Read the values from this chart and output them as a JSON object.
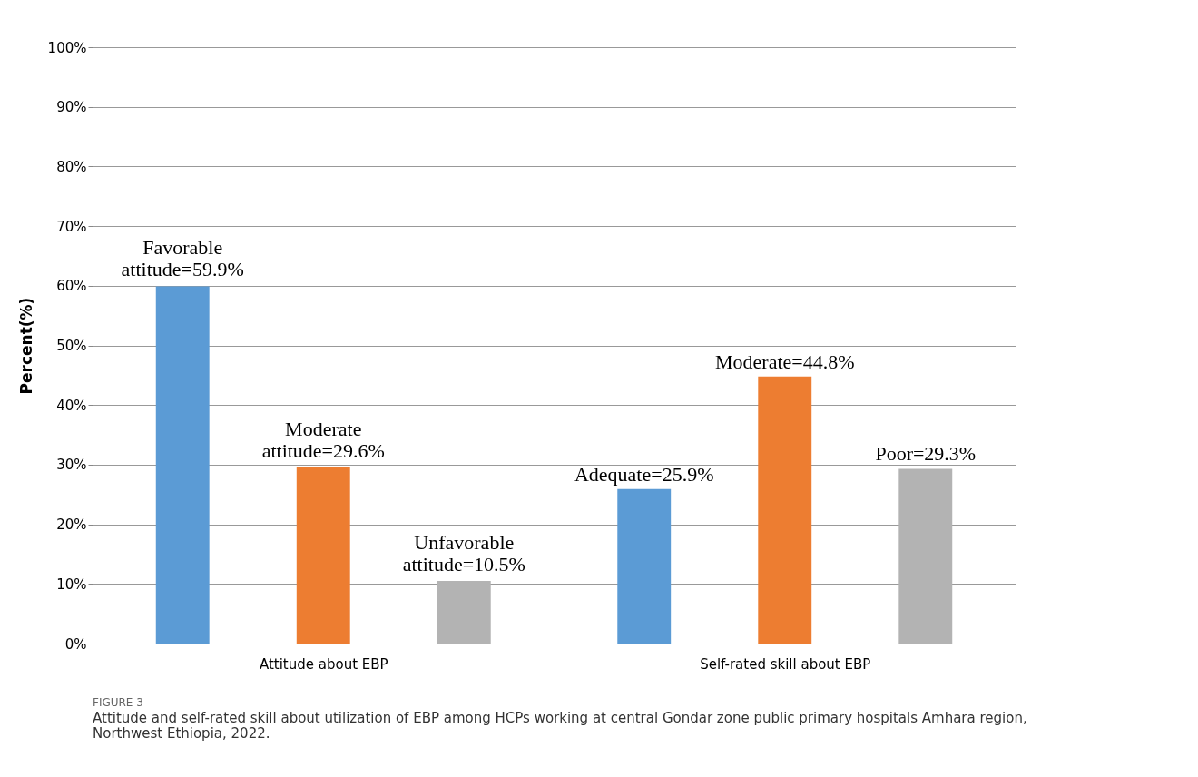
{
  "chart_data": {
    "type": "bar",
    "ylabel": "Percent(%)",
    "categories": [
      "Attitude about EBP",
      "Self-rated skill about EBP"
    ],
    "series": [
      {
        "color": "#5b9bd5",
        "values": [
          59.9,
          25.9
        ],
        "value_labels": [
          "Favorable attitude=59.9%",
          "Adequate=25.9%"
        ]
      },
      {
        "color": "#ed7d31",
        "values": [
          29.6,
          44.8
        ],
        "value_labels": [
          "Moderate attitude=29.6%",
          "Moderate=44.8%"
        ]
      },
      {
        "color": "#b3b3b3",
        "values": [
          10.5,
          29.3
        ],
        "value_labels": [
          "Unfavorable attitude=10.5%",
          "Poor=29.3%"
        ]
      }
    ],
    "ylim": [
      0,
      100
    ],
    "yticks": [
      {
        "value": 0,
        "label": "0%"
      },
      {
        "value": 10,
        "label": "10%"
      },
      {
        "value": 20,
        "label": "20%"
      },
      {
        "value": 30,
        "label": "30%"
      },
      {
        "value": 40,
        "label": "40%"
      },
      {
        "value": 50,
        "label": "50%"
      },
      {
        "value": 60,
        "label": "60%"
      },
      {
        "value": 70,
        "label": "70%"
      },
      {
        "value": 80,
        "label": "80%"
      },
      {
        "value": 90,
        "label": "90%"
      },
      {
        "value": 100,
        "label": "100%"
      }
    ],
    "grid": "y",
    "legend": false,
    "annotations": [
      "FIGURE 3",
      "Attitude and self-rated skill about utilization of EBP among HCPs working at central Gondar zone public primary hospitals Amhara region, Northwest Ethiopia, 2022."
    ]
  }
}
